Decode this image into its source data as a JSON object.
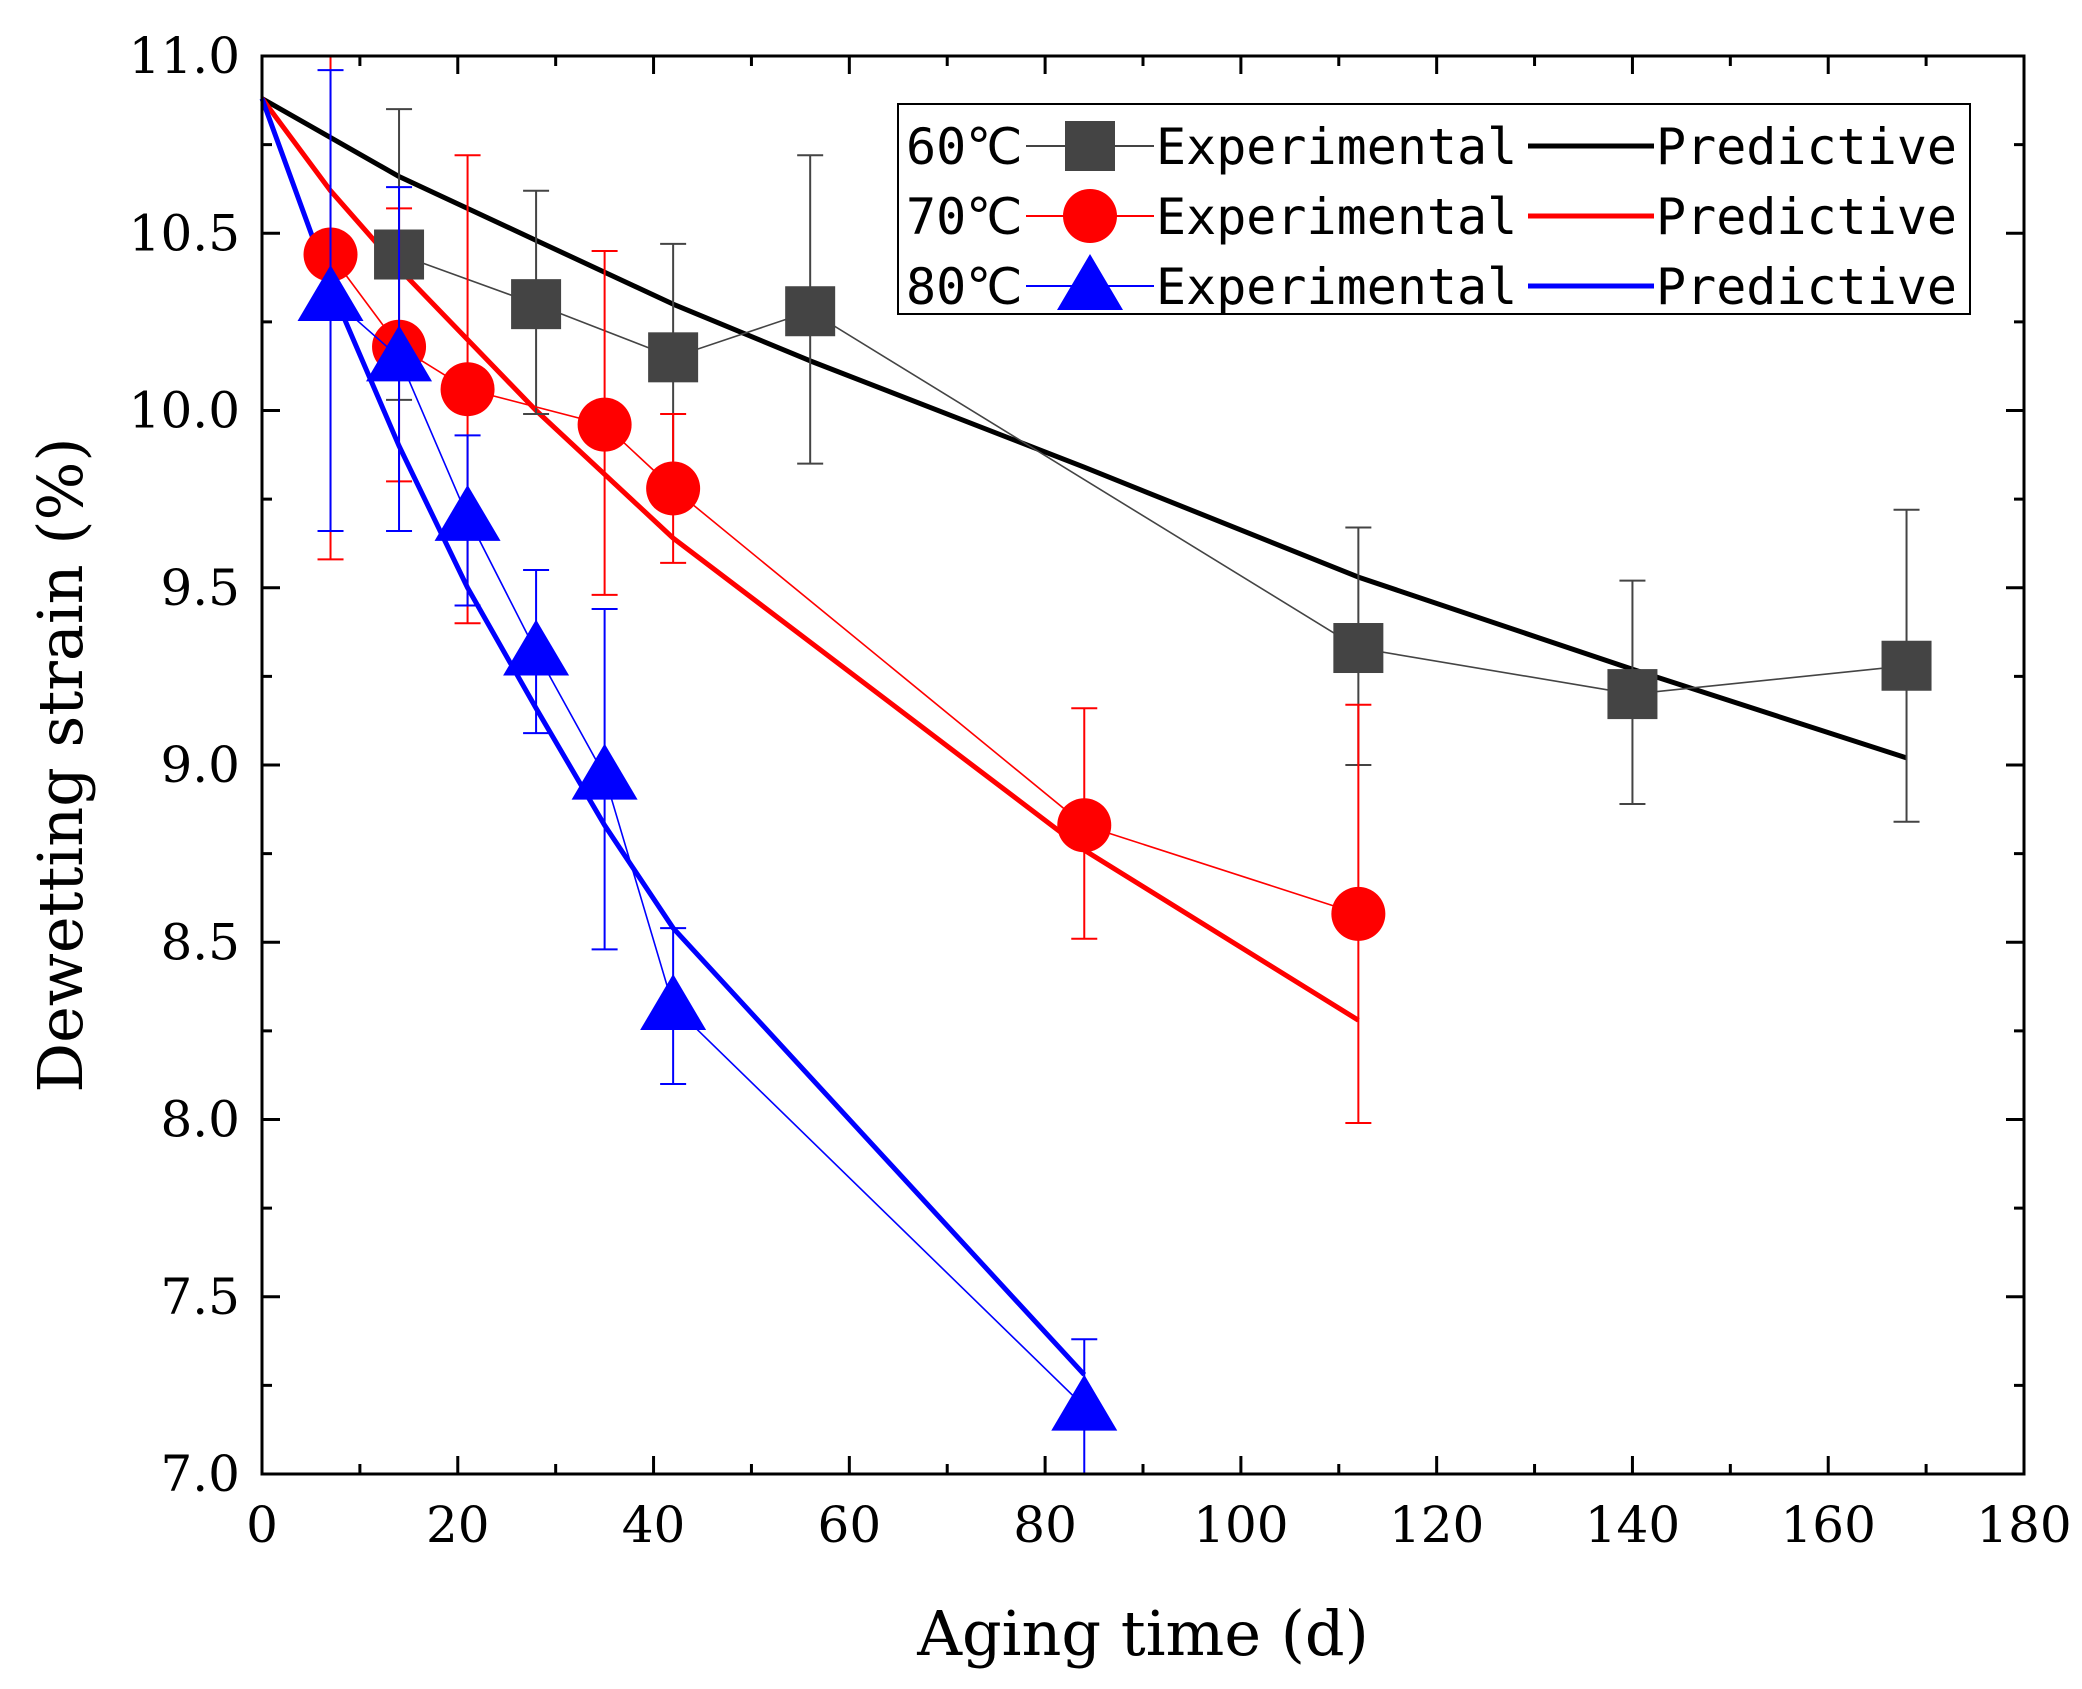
{
  "chart_data": {
    "type": "line",
    "xlabel": "Aging time (d)",
    "ylabel": "Dewetting strain (%)",
    "xlim": [
      0,
      180
    ],
    "ylim": [
      7.0,
      11.0
    ],
    "x_ticks": [
      0,
      20,
      40,
      60,
      80,
      100,
      120,
      140,
      160,
      180
    ],
    "x_tick_labels": [
      "0",
      "20",
      "40",
      "60",
      "80",
      "100",
      "120",
      "140",
      "160",
      "180"
    ],
    "y_ticks": [
      7.0,
      7.5,
      8.0,
      8.5,
      9.0,
      9.5,
      10.0,
      10.5,
      11.0
    ],
    "y_tick_labels": [
      "7.0",
      "7.5",
      "8.0",
      "8.5",
      "9.0",
      "9.5",
      "10.0",
      "10.5",
      "11.0"
    ],
    "legend_position": "top-right",
    "series": [
      {
        "temperature": "60℃",
        "exp_label": "Experimental",
        "pred_label": "Predictive",
        "color": "#444444",
        "line_color": "#000000",
        "marker": "square",
        "experimental": {
          "x": [
            14,
            28,
            42,
            56,
            112,
            140,
            168
          ],
          "y": [
            10.44,
            10.3,
            10.15,
            10.28,
            9.33,
            9.2,
            9.28
          ],
          "err_low": [
            10.03,
            9.99,
            9.84,
            9.85,
            9.0,
            8.89,
            8.84
          ],
          "err_high": [
            10.85,
            10.62,
            10.47,
            10.72,
            9.67,
            9.52,
            9.72
          ]
        },
        "predictive": {
          "x": [
            0,
            14,
            28,
            42,
            56,
            84,
            112,
            140,
            168
          ],
          "y": [
            10.88,
            10.66,
            10.48,
            10.3,
            10.14,
            9.84,
            9.53,
            9.27,
            9.02
          ]
        }
      },
      {
        "temperature": "70℃",
        "exp_label": "Experimental",
        "pred_label": "Predictive",
        "color": "#ff0000",
        "line_color": "#ff0000",
        "marker": "circle",
        "experimental": {
          "x": [
            7,
            14,
            21,
            35,
            42,
            84,
            112
          ],
          "y": [
            10.44,
            10.18,
            10.06,
            9.96,
            9.78,
            8.83,
            8.58
          ],
          "err_low": [
            9.58,
            9.8,
            9.4,
            9.48,
            9.57,
            8.51,
            7.99
          ],
          "err_high": [
            11.0,
            10.57,
            10.72,
            10.45,
            9.99,
            9.16,
            9.17
          ]
        },
        "predictive": {
          "x": [
            0,
            7,
            14,
            21,
            28,
            35,
            42,
            84,
            112
          ],
          "y": [
            10.88,
            10.62,
            10.4,
            10.2,
            10.0,
            9.82,
            9.64,
            8.76,
            8.28
          ]
        }
      },
      {
        "temperature": "80℃",
        "exp_label": "Experimental",
        "pred_label": "Predictive",
        "color": "#0000ff",
        "line_color": "#0000ff",
        "marker": "triangle",
        "experimental": {
          "x": [
            7,
            14,
            21,
            28,
            35,
            42,
            84
          ],
          "y": [
            10.32,
            10.15,
            9.7,
            9.32,
            8.97,
            8.32,
            7.19
          ],
          "err_low": [
            9.66,
            9.66,
            9.45,
            9.09,
            8.48,
            8.1,
            7.0
          ],
          "err_high": [
            10.96,
            10.63,
            9.93,
            9.55,
            9.44,
            8.54,
            7.38
          ]
        },
        "predictive": {
          "x": [
            0,
            7,
            14,
            21,
            28,
            35,
            42,
            84
          ],
          "y": [
            10.88,
            10.35,
            9.9,
            9.5,
            9.16,
            8.83,
            8.54,
            7.28
          ]
        }
      }
    ]
  }
}
